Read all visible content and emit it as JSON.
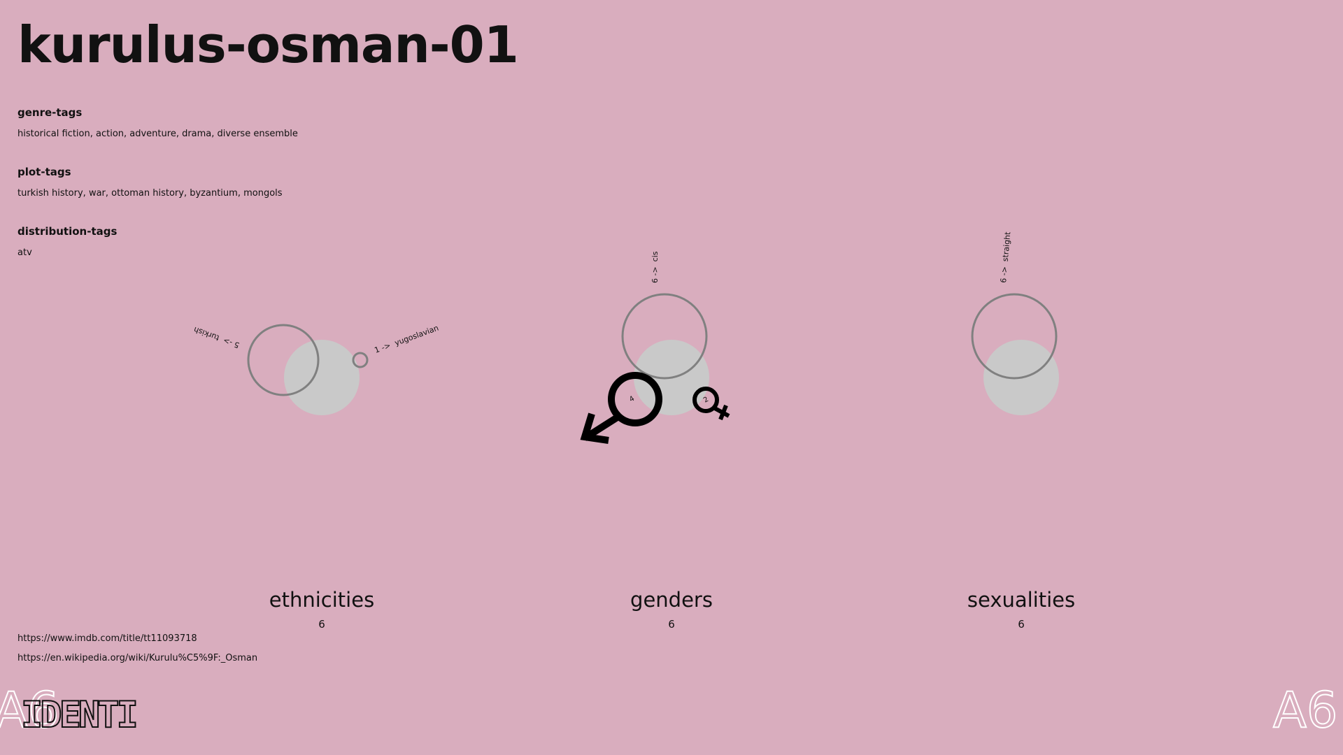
{
  "title": "kurulus-osman-01",
  "tags": [
    {
      "heading": "genre-tags",
      "text": "historical fiction, action, adventure, drama, diverse ensemble"
    },
    {
      "heading": "plot-tags",
      "text": "turkish history, war, ottoman history, byzantium, mongols"
    },
    {
      "heading": "distribution-tags",
      "text": "atv"
    }
  ],
  "links": [
    "https://www.imdb.com/title/tt11093718",
    "https://en.wikipedia.org/wiki/Kurulu%C5%9F:_Osman"
  ],
  "charts": [
    {
      "name": "ethnicities",
      "total": "6",
      "items": [
        {
          "count": 5,
          "label": "5 ->  turkish"
        },
        {
          "count": 1,
          "label": "1 ->  yugoslavian"
        }
      ]
    },
    {
      "name": "genders",
      "total": "6",
      "items": [
        {
          "count": 6,
          "label": "6 ->  cis"
        },
        {
          "count": 4,
          "label": "4",
          "symbol": "male"
        },
        {
          "count": 2,
          "label": "2",
          "symbol": "female"
        }
      ]
    },
    {
      "name": "sexualities",
      "total": "6",
      "items": [
        {
          "count": 6,
          "label": "6 ->  straight"
        }
      ]
    }
  ],
  "colors": {
    "background": "#d9adbe",
    "fill_circle": "#c9c9c9",
    "outline_circle": "#808080",
    "symbol": "#000000"
  },
  "logos": {
    "left": "IDENTI",
    "bottom_left_mark": "A6",
    "bottom_right_mark": "A6"
  }
}
